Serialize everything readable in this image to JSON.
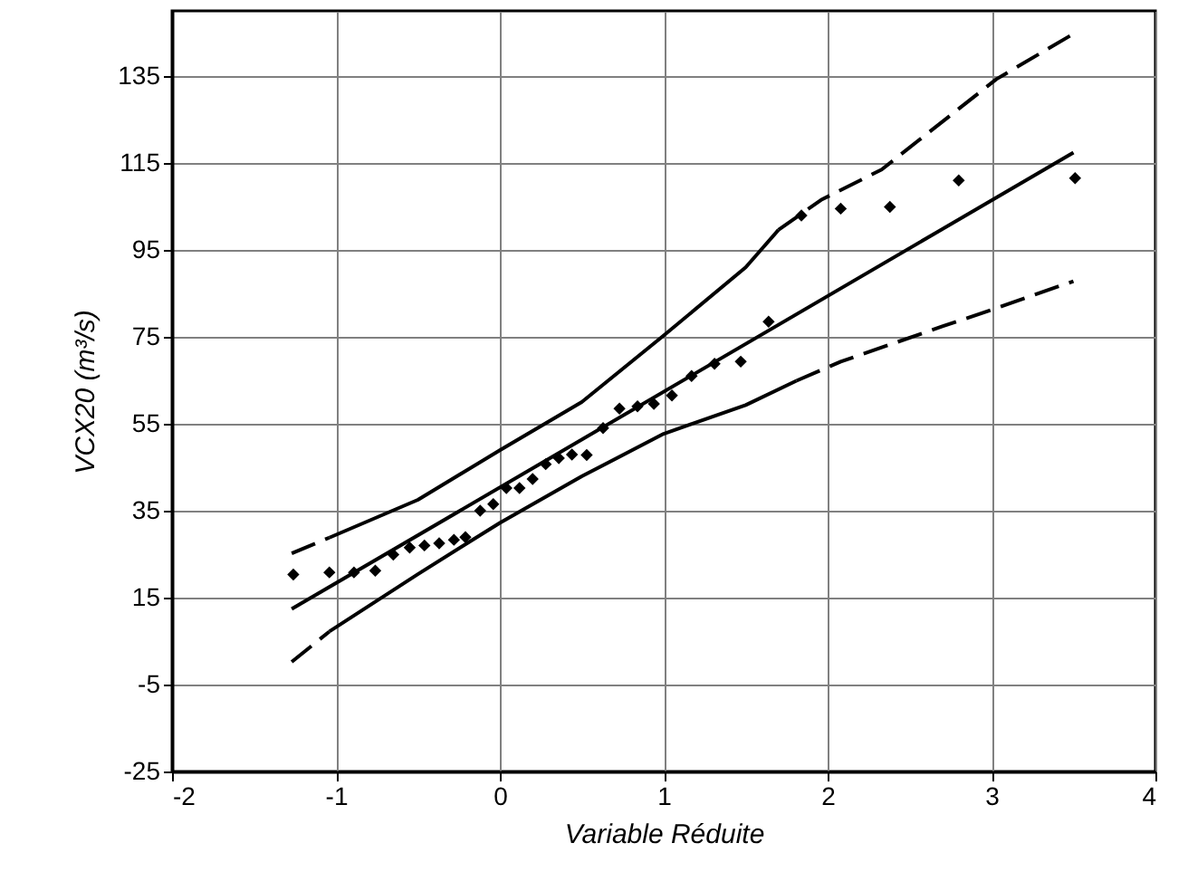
{
  "chart_data": {
    "type": "scatter",
    "xlabel": "Variable Réduite",
    "ylabel": "VCX20 (m³/s)",
    "xlim": [
      -2,
      4
    ],
    "xticks": [
      -2,
      -1,
      0,
      1,
      2,
      3,
      4
    ],
    "ylim": [
      -25,
      150
    ],
    "yticks": [
      -25,
      -5,
      15,
      35,
      55,
      75,
      95,
      115,
      135
    ],
    "grid": true,
    "series": [
      {
        "marker": "diamond",
        "color": "#000000",
        "x": [
          -1.26,
          -1.04,
          -0.89,
          -0.76,
          -0.65,
          -0.55,
          -0.46,
          -0.37,
          -0.28,
          -0.21,
          -0.12,
          -0.04,
          0.04,
          0.12,
          0.2,
          0.28,
          0.36,
          0.44,
          0.53,
          0.63,
          0.73,
          0.84,
          0.94,
          1.05,
          1.17,
          1.31,
          1.47,
          1.64,
          1.84,
          2.08,
          2.38,
          2.8,
          3.51
        ],
        "values": [
          20.3,
          20.8,
          20.8,
          21.2,
          24.9,
          26.5,
          27,
          27.5,
          28.3,
          28.9,
          35,
          36.5,
          40.2,
          40.2,
          42.3,
          45.7,
          47.1,
          47.9,
          47.8,
          54,
          58.5,
          59,
          59.6,
          61.5,
          66,
          68.8,
          69.3,
          78.5,
          102.9,
          104.5,
          104.9,
          111,
          111.5
        ]
      },
      {
        "type": "line",
        "line_style": "solid",
        "color": "#000000",
        "x": [
          -1.27,
          3.5
        ],
        "values": [
          12.4,
          117.4
        ]
      },
      {
        "type": "line",
        "line_style": "dashed",
        "color": "#000000",
        "x": [
          -1.27,
          -1.04
        ],
        "values": [
          25.2,
          28.8
        ]
      },
      {
        "type": "line",
        "line_style": "solid",
        "color": "#000000",
        "x": [
          -1.04,
          -0.5,
          0,
          0.5,
          1,
          1.5,
          1.7
        ],
        "values": [
          28.8,
          37.5,
          48.9,
          60,
          75.3,
          91,
          99.6
        ]
      },
      {
        "type": "line",
        "line_style": "dashed",
        "color": "#000000",
        "x": [
          1.7,
          1.96,
          2.33,
          3.03,
          3.49
        ],
        "values": [
          99.6,
          106.5,
          113.5,
          134.3,
          144.5
        ]
      },
      {
        "type": "line",
        "line_style": "dashed",
        "color": "#000000",
        "x": [
          -1.27,
          -1.04
        ],
        "values": [
          0.2,
          7.2
        ]
      },
      {
        "type": "line",
        "line_style": "solid",
        "color": "#000000",
        "x": [
          -1.04,
          -0.5,
          0,
          0.5,
          1,
          1.5,
          1.81
        ],
        "values": [
          7.2,
          20.4,
          32.2,
          42.9,
          52.7,
          59.3,
          64.9
        ]
      },
      {
        "type": "line",
        "line_style": "dashed",
        "color": "#000000",
        "x": [
          1.81,
          2.08,
          2.7,
          3.03,
          3.5
        ],
        "values": [
          64.9,
          69.3,
          77.4,
          81.6,
          87.8
        ]
      }
    ]
  }
}
